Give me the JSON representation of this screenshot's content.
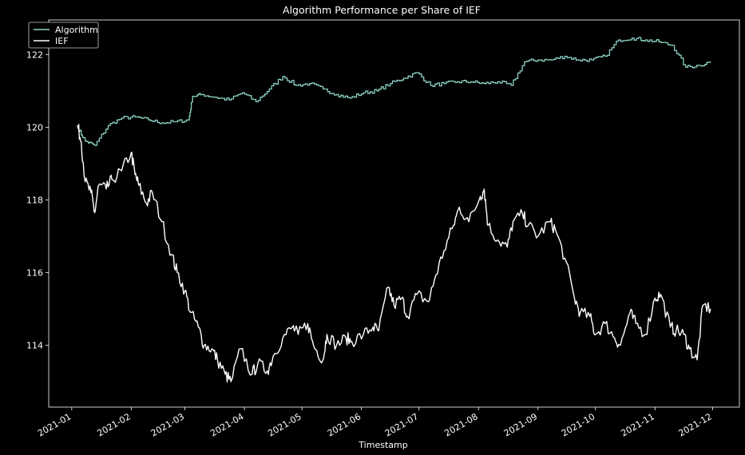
{
  "chart_data": {
    "type": "line",
    "title": "Algorithm Performance per Share of IEF",
    "xlabel": "Timestamp",
    "ylabel": "",
    "x_range": [
      "2021-01-04",
      "2021-11-30"
    ],
    "xlim": [
      "2020-12-20",
      "2021-12-15"
    ],
    "ylim": [
      112.3,
      122.95
    ],
    "x_ticks": [
      "2021-01",
      "2021-02",
      "2021-03",
      "2021-04",
      "2021-05",
      "2021-06",
      "2021-07",
      "2021-08",
      "2021-09",
      "2021-10",
      "2021-11",
      "2021-12"
    ],
    "y_ticks": [
      114,
      116,
      118,
      120,
      122
    ],
    "grid": false,
    "legend_position": "top-left",
    "background": "#000000",
    "series": [
      {
        "name": "Algorithm",
        "color": "#8dd3c7",
        "x": [
          "2021-01-04",
          "2021-01-08",
          "2021-01-13",
          "2021-01-20",
          "2021-01-27",
          "2021-02-03",
          "2021-02-10",
          "2021-02-17",
          "2021-02-24",
          "2021-03-03",
          "2021-03-05",
          "2021-03-10",
          "2021-03-17",
          "2021-03-24",
          "2021-03-31",
          "2021-04-07",
          "2021-04-14",
          "2021-04-21",
          "2021-04-28",
          "2021-05-05",
          "2021-05-12",
          "2021-05-19",
          "2021-05-26",
          "2021-06-02",
          "2021-06-09",
          "2021-06-16",
          "2021-06-23",
          "2021-06-30",
          "2021-07-07",
          "2021-07-14",
          "2021-07-21",
          "2021-07-28",
          "2021-08-04",
          "2021-08-11",
          "2021-08-18",
          "2021-08-25",
          "2021-09-01",
          "2021-09-08",
          "2021-09-15",
          "2021-09-22",
          "2021-09-29",
          "2021-10-06",
          "2021-10-13",
          "2021-10-20",
          "2021-10-27",
          "2021-11-03",
          "2021-11-10",
          "2021-11-17",
          "2021-11-24",
          "2021-11-30"
        ],
        "values": [
          120.0,
          119.62,
          119.5,
          120.05,
          120.25,
          120.28,
          120.2,
          120.12,
          120.15,
          120.2,
          120.85,
          120.9,
          120.82,
          120.75,
          120.95,
          120.7,
          121.05,
          121.4,
          121.15,
          121.2,
          121.05,
          120.9,
          120.8,
          120.95,
          121.0,
          121.2,
          121.35,
          121.5,
          121.15,
          121.2,
          121.25,
          121.25,
          121.2,
          121.25,
          121.15,
          121.8,
          121.85,
          121.85,
          121.95,
          121.85,
          121.85,
          121.95,
          122.4,
          122.45,
          122.4,
          122.35,
          122.25,
          121.65,
          121.7,
          121.8
        ]
      },
      {
        "name": "IEF",
        "color": "#ffffff",
        "x": [
          "2021-01-04",
          "2021-01-06",
          "2021-01-08",
          "2021-01-11",
          "2021-01-13",
          "2021-01-15",
          "2021-01-19",
          "2021-01-22",
          "2021-01-27",
          "2021-02-01",
          "2021-02-03",
          "2021-02-05",
          "2021-02-09",
          "2021-02-12",
          "2021-02-17",
          "2021-02-22",
          "2021-02-25",
          "2021-03-01",
          "2021-03-04",
          "2021-03-08",
          "2021-03-11",
          "2021-03-15",
          "2021-03-18",
          "2021-03-22",
          "2021-03-25",
          "2021-03-30",
          "2021-04-05",
          "2021-04-08",
          "2021-04-13",
          "2021-04-16",
          "2021-04-21",
          "2021-04-26",
          "2021-04-29",
          "2021-05-04",
          "2021-05-07",
          "2021-05-12",
          "2021-05-14",
          "2021-05-19",
          "2021-05-24",
          "2021-05-27",
          "2021-06-02",
          "2021-06-07",
          "2021-06-10",
          "2021-06-15",
          "2021-06-18",
          "2021-06-22",
          "2021-06-25",
          "2021-06-30",
          "2021-07-06",
          "2021-07-09",
          "2021-07-14",
          "2021-07-19",
          "2021-07-22",
          "2021-07-27",
          "2021-08-02",
          "2021-08-04",
          "2021-08-06",
          "2021-08-11",
          "2021-08-16",
          "2021-08-19",
          "2021-08-24",
          "2021-08-27",
          "2021-09-01",
          "2021-09-07",
          "2021-09-10",
          "2021-09-15",
          "2021-09-20",
          "2021-09-23",
          "2021-09-28",
          "2021-10-01",
          "2021-10-06",
          "2021-10-11",
          "2021-10-14",
          "2021-10-19",
          "2021-10-22",
          "2021-10-27",
          "2021-11-01",
          "2021-11-04",
          "2021-11-09",
          "2021-11-12",
          "2021-11-16",
          "2021-11-19",
          "2021-11-23",
          "2021-11-26",
          "2021-11-30"
        ],
        "values": [
          120.05,
          119.6,
          118.5,
          118.2,
          117.65,
          118.4,
          118.3,
          118.55,
          118.8,
          119.3,
          118.7,
          118.4,
          117.9,
          118.2,
          117.4,
          116.5,
          116.0,
          115.5,
          114.9,
          114.5,
          114.0,
          113.9,
          113.6,
          113.2,
          113.0,
          113.9,
          113.2,
          113.5,
          113.3,
          113.7,
          114.2,
          114.5,
          114.3,
          114.6,
          114.0,
          113.6,
          114.3,
          114.0,
          114.2,
          114.1,
          114.3,
          114.5,
          114.4,
          115.6,
          115.1,
          115.3,
          114.8,
          115.4,
          115.2,
          115.8,
          116.6,
          117.3,
          117.8,
          117.4,
          118.1,
          118.3,
          117.3,
          116.9,
          116.7,
          117.4,
          117.6,
          117.3,
          117.0,
          117.4,
          117.2,
          116.4,
          115.3,
          114.9,
          114.8,
          114.3,
          114.6,
          114.2,
          114.0,
          114.9,
          114.6,
          114.3,
          115.3,
          115.4,
          114.5,
          114.4,
          114.3,
          113.9,
          113.6,
          115.1,
          115.0
        ]
      }
    ]
  }
}
